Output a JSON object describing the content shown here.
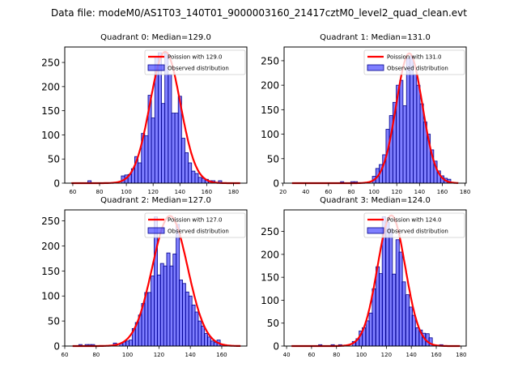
{
  "suptitle": "Data file: modeM0/AS1T03_140T01_9000003160_21417cztM0_level2_quad_clean.evt",
  "chart_data": [
    {
      "type": "bar",
      "title": "Quadrant 0: Median=129.0",
      "xlim": [
        54,
        190
      ],
      "ylim": [
        0,
        282
      ],
      "xticks": [
        60,
        80,
        100,
        120,
        140,
        160,
        180
      ],
      "yticks": [
        0,
        50,
        100,
        150,
        200,
        250
      ],
      "bin_width": 2.5,
      "bins_x": [
        72.5,
        97.5,
        100,
        102.5,
        105,
        107.5,
        110,
        112.5,
        115,
        117.5,
        120,
        122.5,
        125,
        127.5,
        130,
        132.5,
        135,
        137.5,
        140,
        142.5,
        145,
        147.5,
        150,
        152.5,
        155,
        157.5,
        160,
        162.5,
        165,
        170
      ],
      "values": [
        5,
        15,
        17,
        18,
        30,
        55,
        42,
        103,
        98,
        182,
        135,
        262,
        270,
        165,
        270,
        225,
        145,
        145,
        180,
        93,
        63,
        42,
        25,
        20,
        12,
        10,
        8,
        5,
        5,
        5
      ],
      "poisson_mean": 129.0,
      "poisson_peak": 272,
      "poisson_range": [
        59,
        185
      ],
      "legend": [
        "Poission with 129.0",
        "Observed distribution"
      ],
      "legend_loc": "upper right"
    },
    {
      "type": "bar",
      "title": "Quadrant 1: Median=131.0",
      "xlim": [
        21,
        181
      ],
      "ylim": [
        0,
        278
      ],
      "xticks": [
        20,
        40,
        60,
        80,
        100,
        120,
        140,
        160,
        180
      ],
      "yticks": [
        0,
        50,
        100,
        150,
        200,
        250
      ],
      "bin_width": 2.9,
      "bins_x": [
        72,
        81,
        84,
        100,
        103,
        106,
        109,
        112,
        115,
        118,
        121,
        124,
        127,
        130,
        133,
        136,
        139,
        142,
        145,
        148,
        151,
        154,
        157,
        160,
        163,
        166
      ],
      "values": [
        3,
        3,
        3,
        14,
        30,
        38,
        58,
        110,
        138,
        165,
        200,
        210,
        158,
        255,
        260,
        222,
        200,
        162,
        125,
        100,
        68,
        45,
        25,
        15,
        10,
        8
      ],
      "poisson_mean": 131.0,
      "poisson_peak": 265,
      "poisson_range": [
        28,
        174
      ],
      "legend": [
        "Poission with 131.0",
        "Observed distribution"
      ],
      "legend_loc": "upper right"
    },
    {
      "type": "bar",
      "title": "Quadrant 2: Median=127.0",
      "xlim": [
        60,
        176
      ],
      "ylim": [
        0,
        272
      ],
      "xticks": [
        60,
        80,
        100,
        120,
        140,
        160
      ],
      "yticks": [
        0,
        50,
        100,
        150,
        200,
        250
      ],
      "bin_width": 2.1,
      "bins_x": [
        70,
        74,
        76,
        78,
        92,
        96,
        98,
        100,
        102,
        104,
        106,
        108,
        110,
        112,
        114,
        116,
        118,
        120,
        122,
        124,
        126,
        128,
        130,
        132,
        134,
        136,
        138,
        140,
        142,
        144,
        146,
        148,
        150,
        152,
        154,
        156,
        158,
        160
      ],
      "values": [
        3,
        3,
        3,
        3,
        6,
        5,
        8,
        10,
        12,
        35,
        47,
        62,
        85,
        107,
        107,
        140,
        258,
        142,
        165,
        160,
        186,
        160,
        184,
        243,
        132,
        125,
        108,
        100,
        82,
        68,
        50,
        40,
        25,
        18,
        10,
        7,
        12,
        3
      ],
      "poisson_mean": 127.0,
      "poisson_peak": 260,
      "poisson_range": [
        65,
        172
      ],
      "legend": [
        "Poission with 127.0",
        "Observed distribution"
      ],
      "legend_loc": "upper right"
    },
    {
      "type": "bar",
      "title": "Quadrant 3: Median=124.0",
      "xlim": [
        38,
        184
      ],
      "ylim": [
        0,
        297
      ],
      "xticks": [
        40,
        60,
        80,
        100,
        120,
        140,
        160,
        180
      ],
      "yticks": [
        0,
        50,
        100,
        150,
        200,
        250
      ],
      "bin_width": 2.7,
      "bins_x": [
        67,
        77,
        83,
        94,
        97,
        99.5,
        102,
        105,
        107.5,
        110,
        113,
        115.5,
        118,
        121,
        123.5,
        126,
        129,
        131.5,
        134,
        137,
        139.5,
        142,
        145,
        147.5,
        150,
        153,
        155.5,
        164
      ],
      "values": [
        3,
        3,
        3,
        10,
        16,
        33,
        40,
        55,
        72,
        125,
        173,
        158,
        282,
        270,
        255,
        157,
        232,
        205,
        140,
        112,
        85,
        67,
        40,
        35,
        28,
        27,
        18,
        3
      ],
      "poisson_mean": 124.0,
      "poisson_peak": 285,
      "poisson_range": [
        44,
        179
      ],
      "legend": [
        "Poission with 124.0",
        "Observed distribution"
      ],
      "legend_loc": "upper right"
    }
  ],
  "colors": {
    "bar_fill": "#0000ff",
    "bar_edge": "#00008b",
    "line": "#ff0000"
  }
}
